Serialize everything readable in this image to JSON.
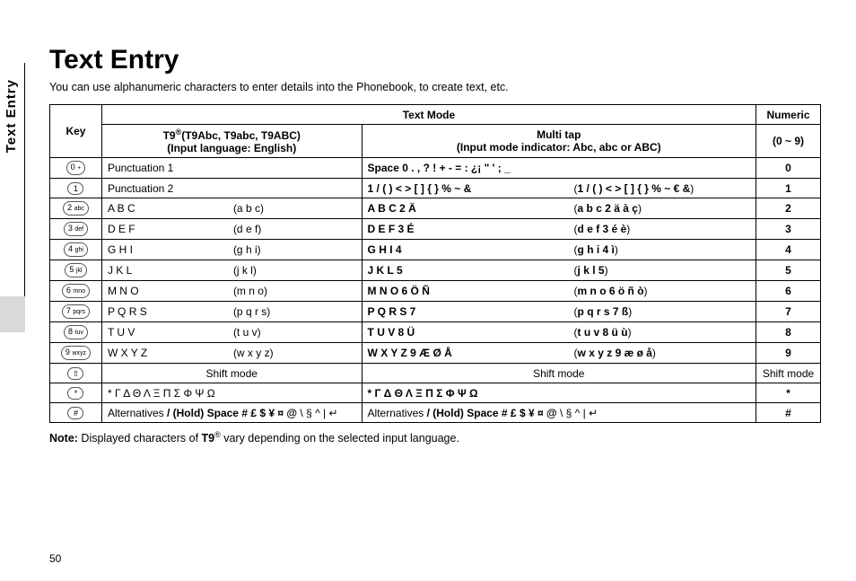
{
  "sideTab": "Text Entry",
  "title": "Text Entry",
  "intro": "You can use alphanumeric characters to enter details into the Phonebook, to create text, etc.",
  "header": {
    "textMode": "Text Mode",
    "numeric": "Numeric",
    "key": "Key",
    "t9_line1": "T9",
    "t9_sup": "®",
    "t9_line1b": "(T9Abc, T9abc, T9ABC)",
    "t9_line2": "(Input language: English)",
    "multi_line1": "Multi tap",
    "multi_line2": "(Input mode indicator: Abc, abc or ABC)",
    "num_line": "(0 ~ 9)"
  },
  "rows": [
    {
      "key": "0",
      "keySub": "+",
      "t9_a": "Punctuation 1",
      "t9_b": "",
      "m_a": "Space 0 . , ? ! + - = : ¿¡ \" ' ; _",
      "m_b": "",
      "num": "0"
    },
    {
      "key": "1",
      "keySub": "",
      "t9_a": "Punctuation 2",
      "t9_b": "",
      "m_a": "1 / ( ) < > [ ] { } % ~ &",
      "m_b": "(1 / ( ) < > [ ] { } % ~ € &)",
      "num": "1"
    },
    {
      "key": "2",
      "keySub": "abc",
      "t9_a": "A B C",
      "t9_b": "(a b c)",
      "m_a": "A B C 2 Ä",
      "m_b": "(a b c 2 ä à ç)",
      "num": "2"
    },
    {
      "key": "3",
      "keySub": "def",
      "t9_a": "D E F",
      "t9_b": "(d e f)",
      "m_a": "D E F 3 É",
      "m_b": "(d e f 3 é è)",
      "num": "3"
    },
    {
      "key": "4",
      "keySub": "ghi",
      "t9_a": "G H I",
      "t9_b": "(g h i)",
      "m_a": "G H I 4",
      "m_b": "(g h i 4 ì)",
      "num": "4"
    },
    {
      "key": "5",
      "keySub": "jkl",
      "t9_a": "J K L",
      "t9_b": "(j k l)",
      "m_a": "J K L 5",
      "m_b": "(j k l 5)",
      "num": "5"
    },
    {
      "key": "6",
      "keySub": "mno",
      "t9_a": "M N O",
      "t9_b": "(m n o)",
      "m_a": "M N O 6 Ö Ñ",
      "m_b": "(m n o 6 ö ñ ò)",
      "num": "6"
    },
    {
      "key": "7",
      "keySub": "pqrs",
      "t9_a": "P Q R S",
      "t9_b": "(p q r s)",
      "m_a": "P Q R S 7",
      "m_b": "(p q r s 7 ß)",
      "num": "7"
    },
    {
      "key": "8",
      "keySub": "tuv",
      "t9_a": "T U V",
      "t9_b": "(t u v)",
      "m_a": "T U V 8 Ü",
      "m_b": "(t u v 8 ü ù)",
      "num": "8"
    },
    {
      "key": "9",
      "keySub": "wxyz",
      "t9_a": "W X Y Z",
      "t9_b": "(w x y z)",
      "m_a": "W X Y Z 9 Æ Ø Å",
      "m_b": "(w x y z 9 æ ø å)",
      "num": "9"
    }
  ],
  "shiftRow": {
    "key": "⇧",
    "t9": "Shift mode",
    "multi": "Shift mode",
    "num": "Shift mode"
  },
  "starRow": {
    "key": "*",
    "t9": "* Γ Δ Θ Λ Ξ Π Σ Φ Ψ Ω",
    "multi": "* Γ Δ Θ Λ Ξ Π Σ Φ Ψ Ω",
    "num": "*"
  },
  "hashRow": {
    "key": "#",
    "t9_pre": "Alternatives ",
    "t9_bold": "/ (Hold) Space # £ $ ¥ ¤ @",
    "t9_post": " \\ § ^ | ↵",
    "m_pre": "Alternatives ",
    "m_bold": "/ (Hold) Space # £ $ ¥ ¤ @",
    "m_post": " \\ § ^ | ↵",
    "num": "#"
  },
  "note_label": "Note:",
  "note_pre": " Displayed characters of ",
  "note_bold": "T9",
  "note_sup": "®",
  "note_post": " vary depending on the selected input language.",
  "pageNumber": "50",
  "colors": {
    "text": "#000000",
    "border": "#000000",
    "bg": "#ffffff",
    "sideGray": "#d9d9d9"
  }
}
